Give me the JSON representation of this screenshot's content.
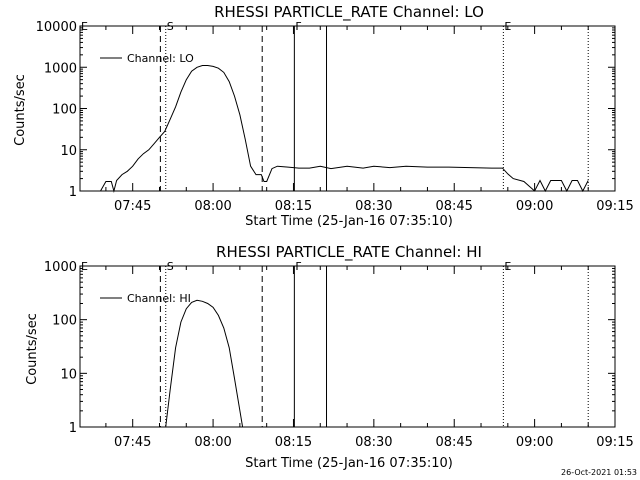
{
  "timestamp": "26-Oct-2021 01:53",
  "colors": {
    "line": "#000000",
    "background": "#ffffff"
  },
  "chart_data": [
    {
      "type": "line",
      "title": "RHESSI PARTICLE_RATE Channel: LO",
      "xlabel": "Start Time (25-Jan-16 07:35:10)",
      "ylabel": "Counts/sec",
      "yscale": "log",
      "xlim": [
        "07:35:10",
        "09:15:00"
      ],
      "ylim": [
        1,
        10000
      ],
      "x_ticks": [
        "07:45",
        "08:00",
        "08:15",
        "08:30",
        "08:45",
        "09:00",
        "09:15"
      ],
      "y_ticks": [
        "1",
        "10",
        "100",
        "1000",
        "10000"
      ],
      "legend": {
        "position": "top-left",
        "entries": [
          "Channel: LO"
        ]
      },
      "markers": [
        {
          "time": "07:35:10",
          "style": "dotted",
          "label": "E"
        },
        {
          "time": "07:50:10",
          "style": "dashed",
          "label": ""
        },
        {
          "time": "07:51:10",
          "style": "dotted",
          "label": "S"
        },
        {
          "time": "08:09:10",
          "style": "dashed",
          "label": ""
        },
        {
          "time": "08:15:10",
          "style": "solid",
          "label": "F"
        },
        {
          "time": "08:21:10",
          "style": "solid",
          "label": ""
        },
        {
          "time": "08:54:10",
          "style": "dotted",
          "label": "E"
        },
        {
          "time": "09:10:00",
          "style": "dotted",
          "label": ""
        }
      ],
      "series": [
        {
          "name": "Channel: LO",
          "points": [
            [
              "07:39:00",
              1
            ],
            [
              "07:40:00",
              1.7
            ],
            [
              "07:41:00",
              1.7
            ],
            [
              "07:41:30",
              1
            ],
            [
              "07:42:00",
              1.8
            ],
            [
              "07:43:00",
              2.5
            ],
            [
              "07:44:00",
              3
            ],
            [
              "07:45:00",
              4
            ],
            [
              "07:46:00",
              6
            ],
            [
              "07:47:00",
              8
            ],
            [
              "07:48:00",
              10
            ],
            [
              "07:49:00",
              14
            ],
            [
              "07:50:00",
              20
            ],
            [
              "07:51:00",
              28
            ],
            [
              "07:52:00",
              55
            ],
            [
              "07:53:00",
              110
            ],
            [
              "07:54:00",
              250
            ],
            [
              "07:55:00",
              500
            ],
            [
              "07:56:00",
              800
            ],
            [
              "07:57:00",
              1000
            ],
            [
              "07:58:00",
              1100
            ],
            [
              "07:59:00",
              1100
            ],
            [
              "08:00:00",
              1050
            ],
            [
              "08:01:00",
              950
            ],
            [
              "08:02:00",
              750
            ],
            [
              "08:03:00",
              450
            ],
            [
              "08:04:00",
              200
            ],
            [
              "08:05:00",
              70
            ],
            [
              "08:06:00",
              18
            ],
            [
              "08:07:00",
              4
            ],
            [
              "08:08:00",
              2.5
            ],
            [
              "08:09:00",
              2.5
            ],
            [
              "08:09:30",
              1.7
            ],
            [
              "08:10:00",
              1.7
            ],
            [
              "08:11:00",
              3.5
            ],
            [
              "08:12:00",
              4
            ],
            [
              "08:14:00",
              3.8
            ],
            [
              "08:16:00",
              3.6
            ],
            [
              "08:18:00",
              3.6
            ],
            [
              "08:20:00",
              4
            ],
            [
              "08:22:00",
              3.5
            ],
            [
              "08:25:00",
              4
            ],
            [
              "08:28:00",
              3.6
            ],
            [
              "08:30:00",
              4
            ],
            [
              "08:33:00",
              3.7
            ],
            [
              "08:36:00",
              4
            ],
            [
              "08:40:00",
              3.8
            ],
            [
              "08:44:00",
              3.8
            ],
            [
              "08:48:00",
              3.7
            ],
            [
              "08:52:00",
              3.6
            ],
            [
              "08:54:00",
              3.6
            ],
            [
              "08:55:00",
              2.6
            ],
            [
              "08:56:00",
              2
            ],
            [
              "08:58:00",
              1.7
            ],
            [
              "09:00:00",
              1
            ],
            [
              "09:01:00",
              1.8
            ],
            [
              "09:02:00",
              1
            ],
            [
              "09:03:00",
              1.8
            ],
            [
              "09:05:00",
              1.8
            ],
            [
              "09:06:00",
              1
            ],
            [
              "09:07:00",
              1.8
            ],
            [
              "09:08:00",
              1.8
            ],
            [
              "09:09:00",
              1
            ],
            [
              "09:10:00",
              1.8
            ]
          ]
        }
      ]
    },
    {
      "type": "line",
      "title": "RHESSI PARTICLE_RATE Channel: HI",
      "xlabel": "Start Time (25-Jan-16 07:35:10)",
      "ylabel": "Counts/sec",
      "yscale": "log",
      "xlim": [
        "07:35:10",
        "09:15:00"
      ],
      "ylim": [
        1,
        1000
      ],
      "x_ticks": [
        "07:45",
        "08:00",
        "08:15",
        "08:30",
        "08:45",
        "09:00",
        "09:15"
      ],
      "y_ticks": [
        "1",
        "10",
        "100",
        "1000"
      ],
      "legend": {
        "position": "top-left",
        "entries": [
          "Channel: HI"
        ]
      },
      "markers": [
        {
          "time": "07:35:10",
          "style": "dotted",
          "label": "E"
        },
        {
          "time": "07:50:10",
          "style": "dashed",
          "label": ""
        },
        {
          "time": "07:51:10",
          "style": "dotted",
          "label": "S"
        },
        {
          "time": "08:09:10",
          "style": "dashed",
          "label": ""
        },
        {
          "time": "08:15:10",
          "style": "solid",
          "label": "F"
        },
        {
          "time": "08:21:10",
          "style": "solid",
          "label": ""
        },
        {
          "time": "08:54:10",
          "style": "dotted",
          "label": "E"
        },
        {
          "time": "09:10:00",
          "style": "dotted",
          "label": ""
        }
      ],
      "series": [
        {
          "name": "Channel: HI",
          "points": [
            [
              "07:51:10",
              1
            ],
            [
              "07:52:00",
              5
            ],
            [
              "07:53:00",
              30
            ],
            [
              "07:54:00",
              90
            ],
            [
              "07:55:00",
              160
            ],
            [
              "07:56:00",
              210
            ],
            [
              "07:57:00",
              230
            ],
            [
              "07:58:00",
              220
            ],
            [
              "07:59:00",
              200
            ],
            [
              "08:00:00",
              170
            ],
            [
              "08:01:00",
              120
            ],
            [
              "08:02:00",
              70
            ],
            [
              "08:03:00",
              30
            ],
            [
              "08:04:00",
              8
            ],
            [
              "08:05:00",
              2
            ],
            [
              "08:05:30",
              1
            ]
          ]
        }
      ]
    }
  ]
}
